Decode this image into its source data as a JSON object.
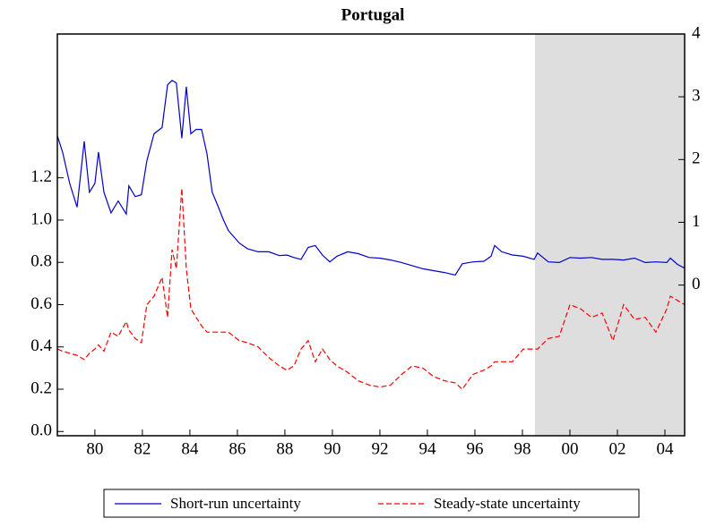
{
  "chart_data": {
    "type": "line",
    "title": "Portugal",
    "x": [
      1978.42,
      1978.64,
      1978.94,
      1979.25,
      1979.55,
      1979.77,
      1980.0,
      1980.15,
      1980.38,
      1980.68,
      1980.98,
      1981.32,
      1981.43,
      1981.7,
      1981.96,
      1982.19,
      1982.49,
      1982.83,
      1983.06,
      1983.25,
      1983.43,
      1983.66,
      1983.85,
      1984.04,
      1984.26,
      1984.49,
      1984.72,
      1984.94,
      1985.17,
      1985.4,
      1985.62,
      1985.85,
      1986.08,
      1986.42,
      1986.87,
      1987.32,
      1987.77,
      1988.08,
      1988.38,
      1988.68,
      1988.98,
      1989.28,
      1989.58,
      1989.89,
      1990.19,
      1990.64,
      1991.09,
      1991.55,
      1992.0,
      1992.45,
      1992.91,
      1993.36,
      1993.81,
      1994.26,
      1994.72,
      1995.17,
      1995.47,
      1995.92,
      1996.38,
      1996.68,
      1996.83,
      1997.13,
      1997.58,
      1998.04,
      1998.49,
      1998.64,
      1999.09,
      1999.55,
      2000.0,
      2000.45,
      2000.91,
      2001.36,
      2001.81,
      2002.26,
      2002.72,
      2003.17,
      2003.62,
      2004.08,
      2004.23,
      2004.53,
      2004.83
    ],
    "series": [
      {
        "name": "Short-run uncertainty",
        "color": "#0000cc",
        "axis": "y2",
        "dash": false,
        "values": [
          2.38,
          2.12,
          1.62,
          1.24,
          2.29,
          1.48,
          1.62,
          2.12,
          1.48,
          1.15,
          1.34,
          1.13,
          1.58,
          1.41,
          1.44,
          1.98,
          2.41,
          2.51,
          3.19,
          3.26,
          3.22,
          2.34,
          3.16,
          2.41,
          2.48,
          2.48,
          2.09,
          1.48,
          1.27,
          1.05,
          0.87,
          0.77,
          0.67,
          0.58,
          0.53,
          0.53,
          0.47,
          0.48,
          0.44,
          0.41,
          0.6,
          0.63,
          0.48,
          0.37,
          0.46,
          0.53,
          0.5,
          0.44,
          0.43,
          0.4,
          0.36,
          0.31,
          0.26,
          0.23,
          0.2,
          0.16,
          0.34,
          0.37,
          0.38,
          0.46,
          0.63,
          0.53,
          0.48,
          0.46,
          0.41,
          0.51,
          0.37,
          0.36,
          0.44,
          0.43,
          0.44,
          0.41,
          0.41,
          0.4,
          0.43,
          0.36,
          0.37,
          0.36,
          0.43,
          0.33,
          0.27
        ]
      },
      {
        "name": "Steady-state uncertainty",
        "color": "#ff0000",
        "axis": "y",
        "dash": true,
        "values": [
          0.39,
          0.38,
          0.37,
          0.36,
          0.34,
          0.37,
          0.39,
          0.41,
          0.38,
          0.47,
          0.45,
          0.52,
          0.48,
          0.44,
          0.42,
          0.6,
          0.64,
          0.73,
          0.54,
          0.86,
          0.77,
          1.15,
          0.77,
          0.58,
          0.54,
          0.5,
          0.47,
          0.47,
          0.47,
          0.47,
          0.47,
          0.45,
          0.43,
          0.42,
          0.4,
          0.35,
          0.31,
          0.29,
          0.31,
          0.39,
          0.43,
          0.33,
          0.39,
          0.34,
          0.31,
          0.28,
          0.24,
          0.22,
          0.21,
          0.22,
          0.27,
          0.31,
          0.3,
          0.26,
          0.24,
          0.23,
          0.2,
          0.27,
          0.29,
          0.31,
          0.33,
          0.33,
          0.33,
          0.39,
          0.39,
          0.39,
          0.44,
          0.45,
          0.6,
          0.58,
          0.54,
          0.56,
          0.43,
          0.6,
          0.53,
          0.54,
          0.47,
          0.58,
          0.64,
          0.62,
          0.6
        ]
      }
    ],
    "xlim": [
      1978.42,
      2004.83
    ],
    "xticks": [
      {
        "value": 1980,
        "label": "80"
      },
      {
        "value": 1982,
        "label": "82"
      },
      {
        "value": 1984,
        "label": "84"
      },
      {
        "value": 1986,
        "label": "86"
      },
      {
        "value": 1988,
        "label": "88"
      },
      {
        "value": 1990,
        "label": "90"
      },
      {
        "value": 1992,
        "label": "92"
      },
      {
        "value": 1994,
        "label": "94"
      },
      {
        "value": 1996,
        "label": "96"
      },
      {
        "value": 1998,
        "label": "98"
      },
      {
        "value": 2000,
        "label": "00"
      },
      {
        "value": 2002,
        "label": "02"
      },
      {
        "value": 2004,
        "label": "04"
      }
    ],
    "ylim": [
      -0.02,
      1.88
    ],
    "yticks": [
      {
        "value": 0,
        "label": "0.0"
      },
      0.2,
      0.4,
      0.6,
      0.8,
      {
        "value": 1,
        "label": "1.0"
      },
      1.2
    ],
    "y2lim": [
      -2.4,
      4
    ],
    "y2ticks": [
      0,
      1,
      2,
      3,
      4
    ],
    "shaded_region": {
      "x": [
        1998.53,
        2004.83
      ],
      "color": "#dedede"
    },
    "legend": "bottom"
  }
}
